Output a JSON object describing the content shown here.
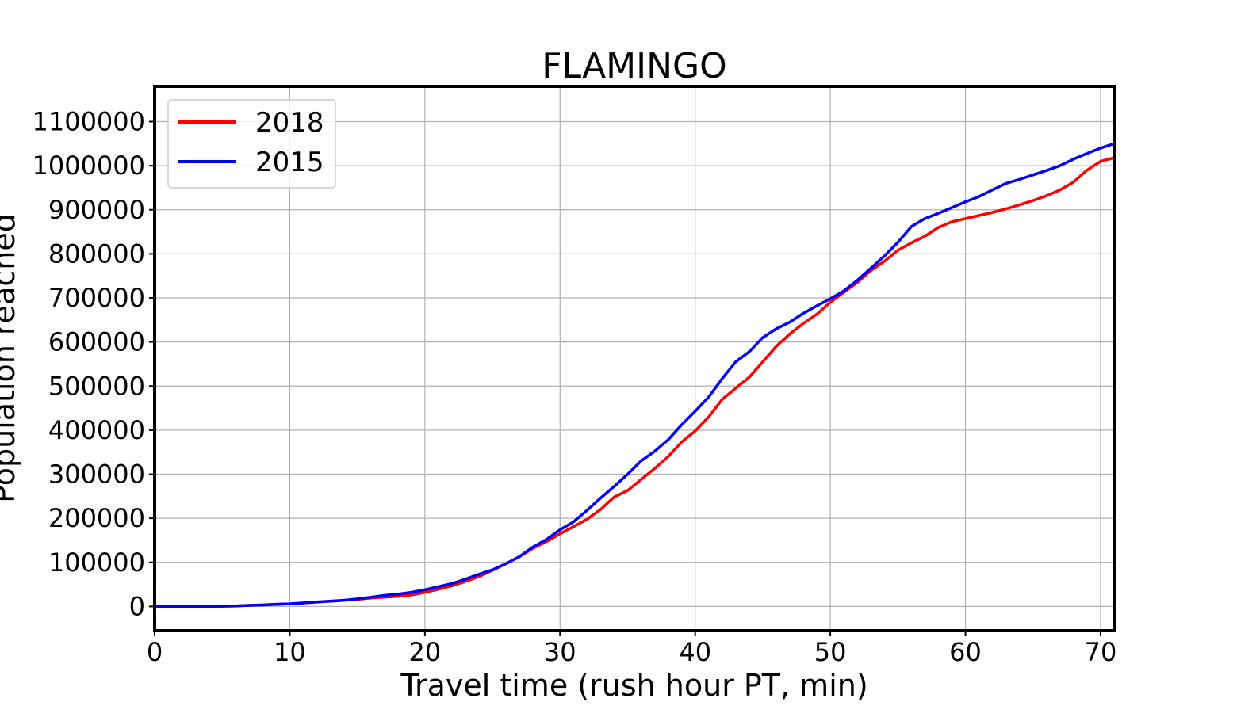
{
  "chart_data": {
    "type": "line",
    "title": "FLAMINGO",
    "xlabel": "Travel time (rush hour PT, min)",
    "ylabel": "Population reached",
    "xlim": [
      0,
      71
    ],
    "ylim": [
      -55000,
      1180000
    ],
    "xticks": [
      0,
      10,
      20,
      30,
      40,
      50,
      60,
      70
    ],
    "yticks": [
      0,
      100000,
      200000,
      300000,
      400000,
      500000,
      600000,
      700000,
      800000,
      900000,
      1000000,
      1100000
    ],
    "grid": true,
    "legend_position": "top-left",
    "x": [
      0,
      1,
      2,
      3,
      4,
      5,
      6,
      7,
      8,
      9,
      10,
      11,
      12,
      13,
      14,
      15,
      16,
      17,
      18,
      19,
      20,
      21,
      22,
      23,
      24,
      25,
      26,
      27,
      28,
      29,
      30,
      31,
      32,
      33,
      34,
      35,
      36,
      37,
      38,
      39,
      40,
      41,
      42,
      43,
      44,
      45,
      46,
      47,
      48,
      49,
      50,
      51,
      52,
      53,
      54,
      55,
      56,
      57,
      58,
      59,
      60,
      61,
      62,
      63,
      64,
      65,
      66,
      67,
      68,
      69,
      70,
      71
    ],
    "series": [
      {
        "name": "2018",
        "color": "#ff0000",
        "values": [
          0,
          0,
          0,
          0,
          0,
          500,
          1000,
          2500,
          3500,
          5000,
          6000,
          8000,
          10000,
          12000,
          14000,
          16000,
          19000,
          21000,
          23000,
          26000,
          32000,
          39000,
          47000,
          57000,
          68000,
          82000,
          97000,
          113000,
          132000,
          147000,
          165000,
          181000,
          198000,
          220000,
          248000,
          263000,
          288000,
          313000,
          340000,
          373000,
          398000,
          430000,
          470000,
          495000,
          520000,
          555000,
          590000,
          618000,
          642000,
          663000,
          690000,
          713000,
          735000,
          762000,
          783000,
          808000,
          825000,
          840000,
          860000,
          873000,
          880000,
          887000,
          894000,
          902000,
          911000,
          921000,
          932000,
          945000,
          963000,
          990000,
          1010000,
          1018000
        ]
      },
      {
        "name": "2015",
        "color": "#0000ff",
        "values": [
          0,
          0,
          0,
          0,
          0,
          500,
          1000,
          2500,
          3500,
          5000,
          6000,
          8000,
          10000,
          12000,
          14000,
          17000,
          21000,
          25000,
          28000,
          32000,
          38000,
          45000,
          52000,
          62000,
          73000,
          83000,
          97000,
          113000,
          135000,
          152000,
          174000,
          192000,
          218000,
          246000,
          272000,
          300000,
          330000,
          352000,
          378000,
          412000,
          443000,
          475000,
          517000,
          555000,
          578000,
          610000,
          630000,
          645000,
          665000,
          682000,
          698000,
          716000,
          740000,
          767000,
          795000,
          826000,
          862000,
          880000,
          892000,
          905000,
          918000,
          930000,
          945000,
          960000,
          969000,
          979000,
          989000,
          1000000,
          1015000,
          1028000,
          1040000,
          1050000
        ]
      }
    ]
  }
}
